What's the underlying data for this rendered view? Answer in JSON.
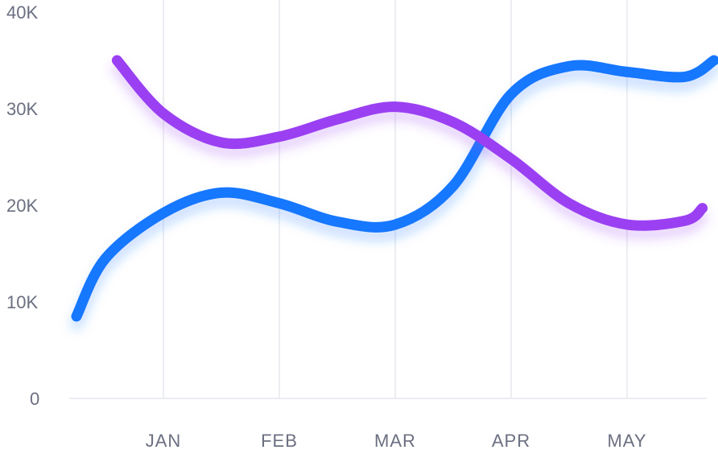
{
  "chart_data": {
    "type": "line",
    "title": "",
    "xlabel": "",
    "ylabel": "",
    "categories": [
      "JAN",
      "FEB",
      "MAR",
      "APR",
      "MAY"
    ],
    "x": [
      -0.75,
      -0.5,
      0,
      0.5,
      1,
      1.5,
      2,
      2.5,
      3,
      3.5,
      4,
      4.5,
      4.75
    ],
    "ylim": [
      0,
      40000
    ],
    "yticks": [
      0,
      10000,
      20000,
      30000,
      40000
    ],
    "ytick_labels": [
      "0",
      "10K",
      "20K",
      "30K",
      "40K"
    ],
    "grid": {
      "vertical": true,
      "horizontal": false
    },
    "series": [
      {
        "color": "#1877ff",
        "x": [
          -0.75,
          -0.5,
          0,
          0.5,
          1,
          1.5,
          2,
          2.5,
          3,
          3.5,
          4,
          4.5,
          4.75
        ],
        "values": [
          8500,
          14500,
          19200,
          21300,
          20200,
          18300,
          18000,
          22000,
          31500,
          34400,
          33800,
          33300,
          35000
        ]
      },
      {
        "color": "#9a3ff2",
        "x": [
          -0.4,
          0,
          0.5,
          1,
          1.5,
          2,
          2.5,
          3,
          3.5,
          4,
          4.5,
          4.65
        ],
        "values": [
          35000,
          29500,
          26500,
          27100,
          28900,
          30200,
          28600,
          24800,
          20200,
          18000,
          18400,
          19700
        ]
      }
    ]
  }
}
